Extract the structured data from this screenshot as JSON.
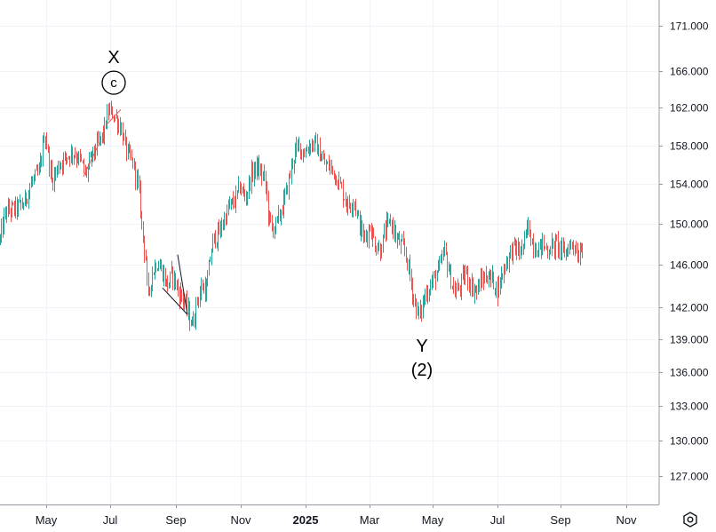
{
  "chart_data": {
    "type": "candlestick",
    "ylim": [
      124.5,
      174.0
    ],
    "y_scale": "log",
    "y_ticks": [
      171.0,
      166.0,
      162.0,
      158.0,
      154.0,
      150.0,
      146.0,
      142.0,
      139.0,
      136.0,
      133.0,
      130.0,
      127.0
    ],
    "y_tick_labels": [
      "171.000",
      "166.000",
      "162.000",
      "158.000",
      "154.000",
      "150.000",
      "146.000",
      "142.000",
      "139.000",
      "136.000",
      "133.000",
      "130.000",
      "127.000"
    ],
    "x_ticks": [
      {
        "label": "May",
        "bold": false
      },
      {
        "label": "Jul",
        "bold": false
      },
      {
        "label": "Sep",
        "bold": false
      },
      {
        "label": "Nov",
        "bold": false
      },
      {
        "label": "2025",
        "bold": true
      },
      {
        "label": "Mar",
        "bold": false
      },
      {
        "label": "May",
        "bold": false
      },
      {
        "label": "Jul",
        "bold": false
      },
      {
        "label": "Sep",
        "bold": false
      },
      {
        "label": "Nov",
        "bold": false
      }
    ],
    "grid": true,
    "up_color": "#26a69a",
    "down_color": "#ef5350",
    "path": [
      [
        0,
        148.5
      ],
      [
        6,
        151.2
      ],
      [
        18,
        151.6
      ],
      [
        26,
        152.0
      ],
      [
        36,
        154.3
      ],
      [
        44,
        155.2
      ],
      [
        50,
        159.5
      ],
      [
        58,
        154.3
      ],
      [
        66,
        156.0
      ],
      [
        74,
        156.8
      ],
      [
        82,
        157.3
      ],
      [
        90,
        156.5
      ],
      [
        96,
        155.0
      ],
      [
        102,
        156.6
      ],
      [
        110,
        158.2
      ],
      [
        116,
        159.2
      ],
      [
        122,
        161.7
      ],
      [
        128,
        161.2
      ],
      [
        136,
        159.8
      ],
      [
        142,
        157.4
      ],
      [
        150,
        156.0
      ],
      [
        156,
        153.5
      ],
      [
        160,
        149.5
      ],
      [
        164,
        146.5
      ],
      [
        166,
        142.5
      ],
      [
        170,
        145.0
      ],
      [
        176,
        146.3
      ],
      [
        182,
        145.5
      ],
      [
        188,
        144.0
      ],
      [
        194,
        145.2
      ],
      [
        200,
        143.5
      ],
      [
        206,
        142.8
      ],
      [
        212,
        141.3
      ],
      [
        216,
        140.3
      ],
      [
        222,
        142.8
      ],
      [
        228,
        144.0
      ],
      [
        232,
        143.5
      ],
      [
        236,
        146.5
      ],
      [
        240,
        148.5
      ],
      [
        246,
        149.0
      ],
      [
        252,
        150.5
      ],
      [
        258,
        151.8
      ],
      [
        264,
        152.3
      ],
      [
        270,
        153.8
      ],
      [
        276,
        152.5
      ],
      [
        282,
        154.8
      ],
      [
        288,
        155.8
      ],
      [
        294,
        155.0
      ],
      [
        298,
        154.5
      ],
      [
        302,
        150.8
      ],
      [
        306,
        149.5
      ],
      [
        312,
        150.2
      ],
      [
        318,
        151.8
      ],
      [
        324,
        154.0
      ],
      [
        330,
        156.8
      ],
      [
        336,
        158.0
      ],
      [
        342,
        157.2
      ],
      [
        348,
        158.0
      ],
      [
        354,
        158.3
      ],
      [
        360,
        157.0
      ],
      [
        366,
        156.0
      ],
      [
        372,
        155.7
      ],
      [
        380,
        154.5
      ],
      [
        386,
        153.0
      ],
      [
        392,
        151.8
      ],
      [
        398,
        152.5
      ],
      [
        404,
        150.0
      ],
      [
        410,
        148.5
      ],
      [
        416,
        149.8
      ],
      [
        422,
        148.0
      ],
      [
        428,
        147.5
      ],
      [
        434,
        149.5
      ],
      [
        440,
        150.3
      ],
      [
        446,
        148.5
      ],
      [
        452,
        147.8
      ],
      [
        456,
        147.2
      ],
      [
        460,
        145.5
      ],
      [
        464,
        143.5
      ],
      [
        468,
        142.0
      ],
      [
        472,
        141.0
      ],
      [
        476,
        142.5
      ],
      [
        480,
        143.5
      ],
      [
        484,
        144.0
      ],
      [
        490,
        145.0
      ],
      [
        496,
        146.0
      ],
      [
        500,
        147.5
      ],
      [
        506,
        145.0
      ],
      [
        512,
        143.3
      ],
      [
        518,
        144.0
      ],
      [
        524,
        145.3
      ],
      [
        530,
        144.0
      ],
      [
        536,
        143.5
      ],
      [
        542,
        144.5
      ],
      [
        548,
        145.0
      ],
      [
        554,
        144.6
      ],
      [
        560,
        143.6
      ],
      [
        566,
        145.5
      ],
      [
        572,
        146.8
      ],
      [
        578,
        147.8
      ],
      [
        584,
        147.2
      ],
      [
        590,
        148.0
      ],
      [
        594,
        150.0
      ],
      [
        598,
        148.5
      ],
      [
        604,
        147.5
      ],
      [
        610,
        148.0
      ],
      [
        616,
        147.5
      ],
      [
        622,
        147.8
      ],
      [
        628,
        148.0
      ],
      [
        634,
        147.0
      ],
      [
        640,
        147.8
      ],
      [
        646,
        148.2
      ],
      [
        650,
        146.8
      ],
      [
        654,
        148.0
      ],
      [
        656,
        148.3
      ]
    ],
    "annotations": [
      {
        "label": "X",
        "sub": "c",
        "sub_style": "circle",
        "x": 124,
        "price": 162.0
      },
      {
        "label": "Y",
        "sub": "(2)",
        "sub_style": "plain",
        "x": 475,
        "price": 140.0
      }
    ],
    "drawings": [
      {
        "color": "#ef5350",
        "points": [
          [
            94,
            154.8
          ],
          [
            112,
            158.3
          ]
        ]
      },
      {
        "color": "#ef5350",
        "points": [
          [
            120,
            160.2
          ],
          [
            136,
            161.8
          ]
        ]
      },
      {
        "color": "#131722",
        "points": [
          [
            200,
            147.0
          ],
          [
            211,
            141.3
          ]
        ]
      },
      {
        "color": "#131722",
        "points": [
          [
            183,
            143.8
          ],
          [
            211,
            141.3
          ]
        ]
      }
    ]
  },
  "toolbar": {
    "settings_icon": "settings-hexagon-icon"
  }
}
